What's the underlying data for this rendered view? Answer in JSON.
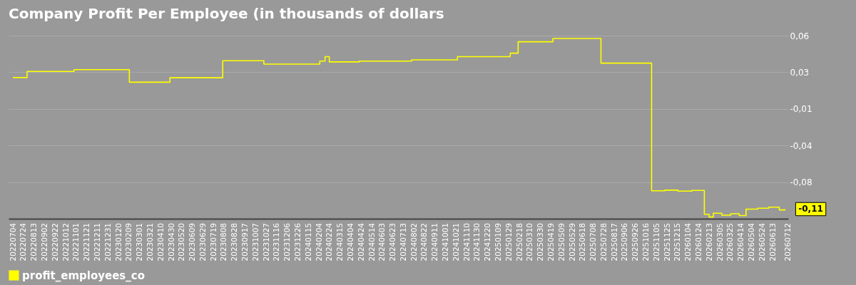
{
  "chart_data": {
    "type": "step",
    "title": "Company Profit Per Employee (in thousands of dollars",
    "x": [
      "2022-07-03",
      "2022-07-30",
      "2022-10-27",
      "2023-02-09",
      "2023-04-27",
      "2023-08-05",
      "2023-10-22",
      "2024-02-05",
      "2024-02-15",
      "2024-02-23",
      "2024-04-20",
      "2024-07-28",
      "2024-10-23",
      "2025-01-31",
      "2025-02-15",
      "2025-04-22",
      "2025-07-22",
      "2025-10-26",
      "2025-11-20",
      "2025-12-15",
      "2026-01-10",
      "2026-02-03",
      "2026-02-12",
      "2026-02-20",
      "2026-03-08",
      "2026-03-25",
      "2026-04-10",
      "2026-04-23",
      "2026-05-15",
      "2026-06-05",
      "2026-06-25",
      "2026-07-06"
    ],
    "series": [
      {
        "name": "profit_employees_co",
        "color": "#ffff00",
        "values": [
          0.0227,
          0.0288,
          0.0306,
          0.0181,
          0.0225,
          0.0395,
          0.0361,
          0.0391,
          0.0435,
          0.0383,
          0.0391,
          0.0404,
          0.0435,
          0.047,
          0.0584,
          0.0617,
          0.0371,
          -0.0901,
          -0.0895,
          -0.0905,
          -0.0898,
          -0.1136,
          -0.1163,
          -0.1125,
          -0.1145,
          -0.113,
          -0.1148,
          -0.1084,
          -0.1075,
          -0.1065,
          -0.1092,
          -0.1084
        ]
      }
    ],
    "xlim": [
      "2022-06-25",
      "2026-07-12"
    ],
    "xticks": [
      {
        "value": "2022-07-04",
        "label": "20220704"
      },
      {
        "value": "2022-07-24",
        "label": "20220724"
      },
      {
        "value": "2022-08-13",
        "label": "20220813"
      },
      {
        "value": "2022-09-02",
        "label": "20220902"
      },
      {
        "value": "2022-09-22",
        "label": "20220922"
      },
      {
        "value": "2022-10-12",
        "label": "20221012"
      },
      {
        "value": "2022-11-01",
        "label": "20221101"
      },
      {
        "value": "2022-11-21",
        "label": "20221121"
      },
      {
        "value": "2022-12-11",
        "label": "20221211"
      },
      {
        "value": "2022-12-31",
        "label": "20221231"
      },
      {
        "value": "2023-01-20",
        "label": "20230120"
      },
      {
        "value": "2023-02-09",
        "label": "20230209"
      },
      {
        "value": "2023-03-01",
        "label": "20230301"
      },
      {
        "value": "2023-03-21",
        "label": "20230321"
      },
      {
        "value": "2023-04-10",
        "label": "20230410"
      },
      {
        "value": "2023-04-30",
        "label": "20230430"
      },
      {
        "value": "2023-05-20",
        "label": "20230520"
      },
      {
        "value": "2023-06-09",
        "label": "20230609"
      },
      {
        "value": "2023-06-29",
        "label": "20230629"
      },
      {
        "value": "2023-07-19",
        "label": "20230719"
      },
      {
        "value": "2023-08-08",
        "label": "20230808"
      },
      {
        "value": "2023-08-28",
        "label": "20230828"
      },
      {
        "value": "2023-09-17",
        "label": "20230917"
      },
      {
        "value": "2023-10-07",
        "label": "20231007"
      },
      {
        "value": "2023-10-27",
        "label": "20231027"
      },
      {
        "value": "2023-11-16",
        "label": "20231116"
      },
      {
        "value": "2023-12-06",
        "label": "20231206"
      },
      {
        "value": "2023-12-26",
        "label": "20231226"
      },
      {
        "value": "2024-01-15",
        "label": "20240115"
      },
      {
        "value": "2024-02-04",
        "label": "20240204"
      },
      {
        "value": "2024-02-24",
        "label": "20240224"
      },
      {
        "value": "2024-03-15",
        "label": "20240315"
      },
      {
        "value": "2024-04-04",
        "label": "20240404"
      },
      {
        "value": "2024-04-24",
        "label": "20240424"
      },
      {
        "value": "2024-05-14",
        "label": "20240514"
      },
      {
        "value": "2024-06-03",
        "label": "20240603"
      },
      {
        "value": "2024-06-23",
        "label": "20240623"
      },
      {
        "value": "2024-07-13",
        "label": "20240713"
      },
      {
        "value": "2024-08-02",
        "label": "20240802"
      },
      {
        "value": "2024-08-22",
        "label": "20240822"
      },
      {
        "value": "2024-09-11",
        "label": "20240911"
      },
      {
        "value": "2024-10-01",
        "label": "20241001"
      },
      {
        "value": "2024-10-21",
        "label": "20241021"
      },
      {
        "value": "2024-11-10",
        "label": "20241110"
      },
      {
        "value": "2024-11-30",
        "label": "20241130"
      },
      {
        "value": "2024-12-20",
        "label": "20241220"
      },
      {
        "value": "2025-01-09",
        "label": "20250109"
      },
      {
        "value": "2025-01-29",
        "label": "20250129"
      },
      {
        "value": "2025-02-18",
        "label": "20250218"
      },
      {
        "value": "2025-03-10",
        "label": "20250310"
      },
      {
        "value": "2025-03-30",
        "label": "20250330"
      },
      {
        "value": "2025-04-19",
        "label": "20250419"
      },
      {
        "value": "2025-05-09",
        "label": "20250509"
      },
      {
        "value": "2025-05-29",
        "label": "20250529"
      },
      {
        "value": "2025-06-18",
        "label": "20250618"
      },
      {
        "value": "2025-07-08",
        "label": "20250708"
      },
      {
        "value": "2025-07-28",
        "label": "20250728"
      },
      {
        "value": "2025-08-17",
        "label": "20250817"
      },
      {
        "value": "2025-09-06",
        "label": "20250906"
      },
      {
        "value": "2025-09-26",
        "label": "20250926"
      },
      {
        "value": "2025-10-16",
        "label": "20251016"
      },
      {
        "value": "2025-11-05",
        "label": "20251105"
      },
      {
        "value": "2025-11-25",
        "label": "20251125"
      },
      {
        "value": "2025-12-15",
        "label": "20251215"
      },
      {
        "value": "2026-01-04",
        "label": "20260104"
      },
      {
        "value": "2026-01-24",
        "label": "20260124"
      },
      {
        "value": "2026-02-13",
        "label": "20260213"
      },
      {
        "value": "2026-03-05",
        "label": "20260305"
      },
      {
        "value": "2026-03-25",
        "label": "20260325"
      },
      {
        "value": "2026-04-14",
        "label": "20260414"
      },
      {
        "value": "2026-05-04",
        "label": "20260504"
      },
      {
        "value": "2026-05-24",
        "label": "20260524"
      },
      {
        "value": "2026-06-13",
        "label": "20260613"
      },
      {
        "value": "2026-07-12",
        "label": "20260712"
      }
    ],
    "ylim": [
      -0.118,
      0.0645
    ],
    "yticks": [
      {
        "value": 0.0645,
        "label": "0,06"
      },
      {
        "value": 0.028,
        "label": "0,03"
      },
      {
        "value": -0.0085,
        "label": "-0,01"
      },
      {
        "value": -0.045,
        "label": "-0,04"
      },
      {
        "value": -0.0815,
        "label": "-0,08"
      }
    ],
    "annotations": [
      {
        "text": "-0,11",
        "x": "2026-07-06",
        "y": -0.1084
      }
    ],
    "grid": "y",
    "legend": "bottom"
  }
}
